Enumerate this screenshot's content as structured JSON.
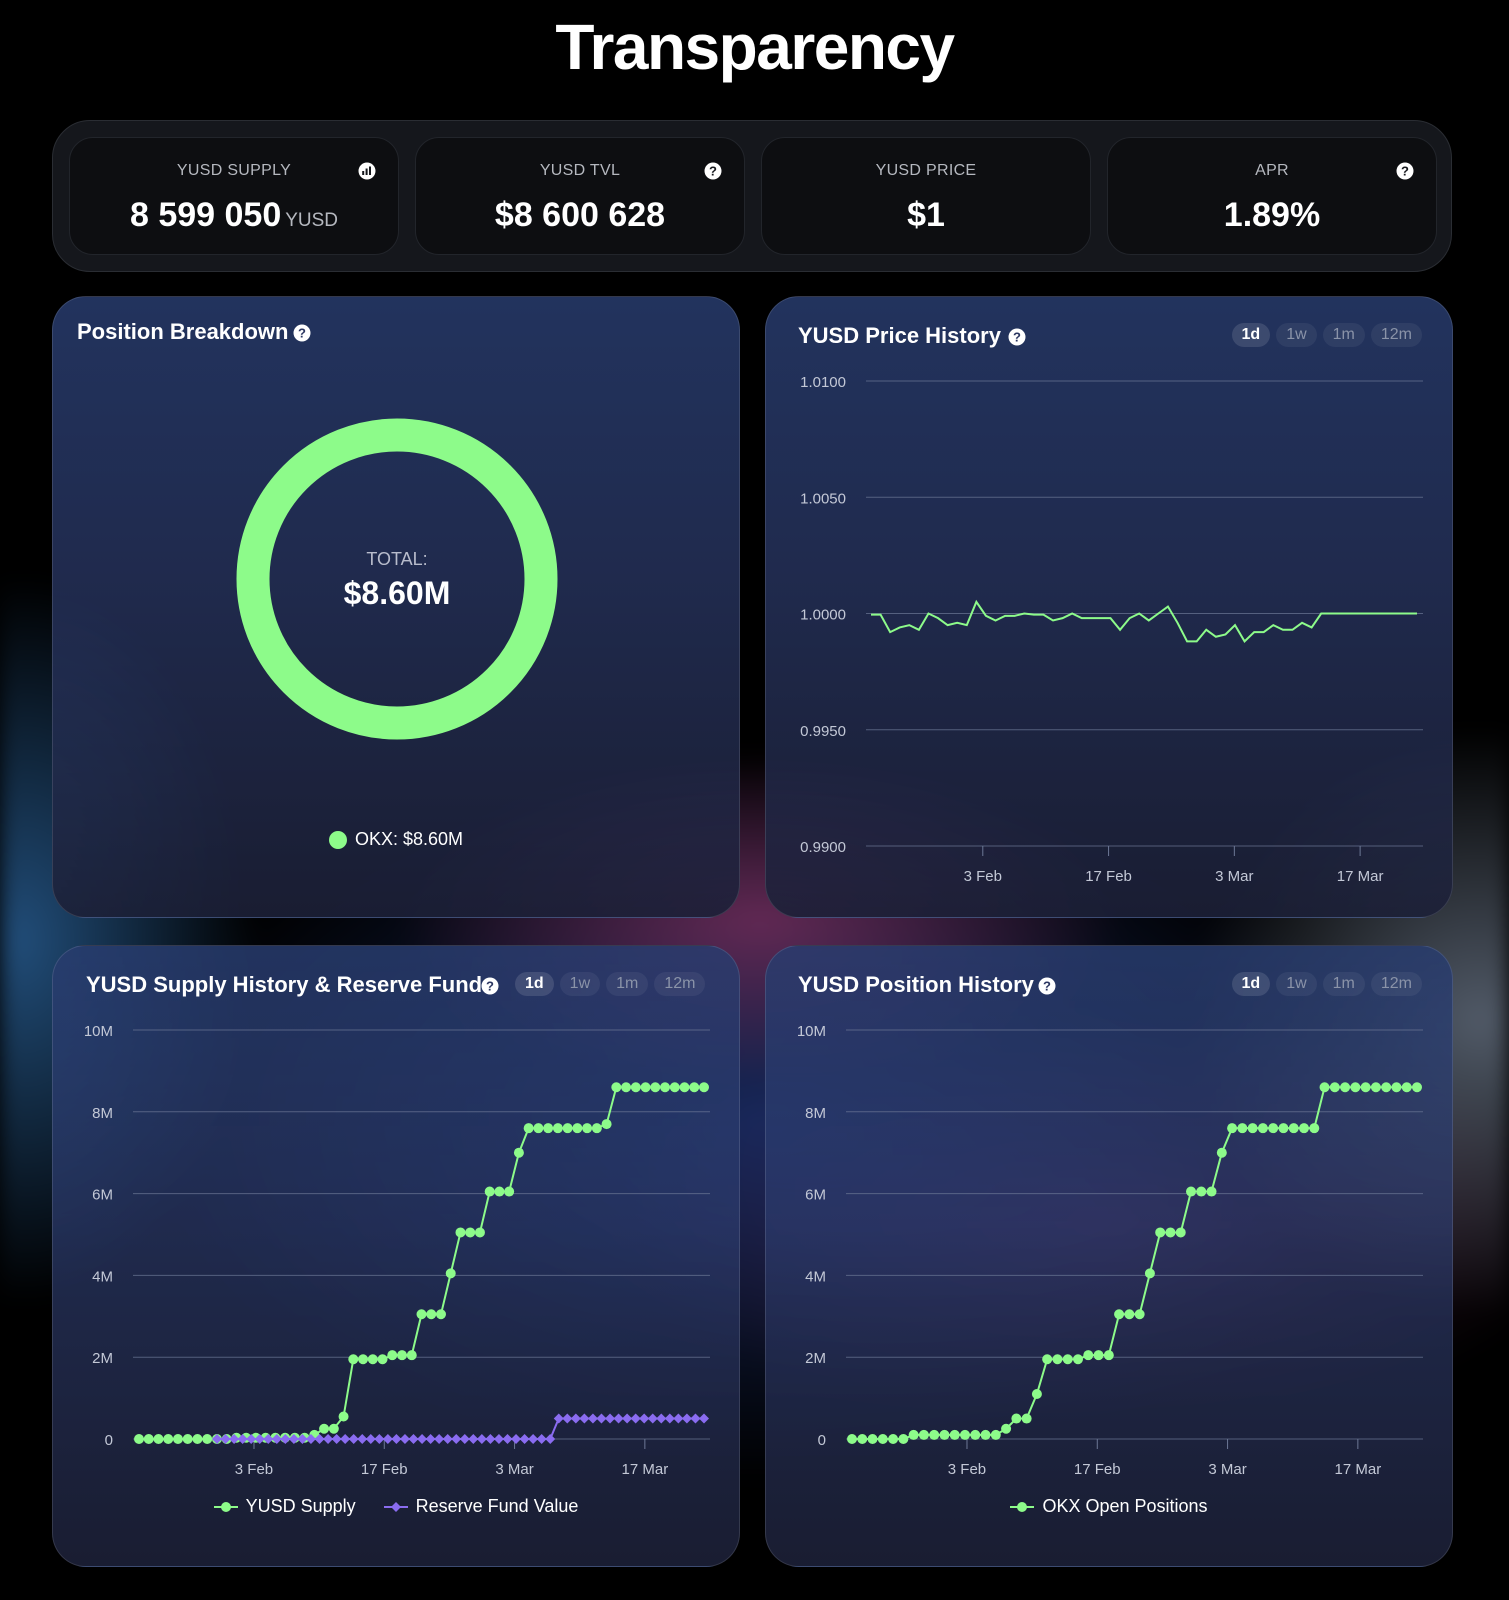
{
  "page": {
    "title": "Transparency"
  },
  "stats": [
    {
      "label": "YUSD SUPPLY",
      "value": "8 599 050",
      "unit": "YUSD",
      "icon": "chart-icon"
    },
    {
      "label": "YUSD TVL",
      "value": "$8 600 628",
      "unit": "",
      "icon": "help-icon"
    },
    {
      "label": "YUSD PRICE",
      "value": "$1",
      "unit": "",
      "icon": ""
    },
    {
      "label": "APR",
      "value": "1.89%",
      "unit": "",
      "icon": "help-icon"
    }
  ],
  "ranges": [
    "1d",
    "1w",
    "1m",
    "12m"
  ],
  "active_range": "1d",
  "colors": {
    "green": "#8dfb8a",
    "purple": "#8a6cf0",
    "grid": "#5a6480"
  },
  "position_breakdown": {
    "title": "Position Breakdown",
    "center_label": "TOTAL:",
    "center_value": "$8.60M",
    "legend": "OKX: $8.60M"
  },
  "price_history": {
    "title": "YUSD Price History"
  },
  "supply_history": {
    "title": "YUSD Supply History & Reserve Fund",
    "legend": [
      "YUSD Supply",
      "Reserve Fund Value"
    ]
  },
  "position_history": {
    "title": "YUSD Position History",
    "legend": [
      "OKX Open Positions"
    ]
  },
  "chart_data": [
    {
      "type": "pie",
      "title": "Position Breakdown",
      "categories": [
        "OKX"
      ],
      "values": [
        8.6
      ],
      "unit": "$M"
    },
    {
      "type": "line",
      "title": "YUSD Price History",
      "x_range": [
        "2025-01-21",
        "2025-03-24"
      ],
      "x_ticks": [
        "3 Feb",
        "17 Feb",
        "3 Mar",
        "17 Mar"
      ],
      "y_ticks": [
        "1.0100",
        "1.0050",
        "1.0000",
        "0.9950",
        "0.9900"
      ],
      "ylim": [
        0.99,
        1.01
      ],
      "series": [
        {
          "values": [
            0.99995,
            0.99995,
            0.9992,
            0.9994,
            0.9995,
            0.9993,
            1.0,
            0.9998,
            0.9995,
            0.9996,
            0.9995,
            1.0005,
            0.9999,
            0.9997,
            0.9999,
            0.9999,
            1.0,
            0.99995,
            0.99995,
            0.9997,
            0.9998,
            1.0,
            0.9998,
            0.9998,
            0.9998,
            0.9998,
            0.9993,
            0.9998,
            1.0,
            0.9997,
            1.0,
            1.0003,
            0.9996,
            0.9988,
            0.9988,
            0.9993,
            0.999,
            0.9991,
            0.9995,
            0.9988,
            0.9992,
            0.9992,
            0.9995,
            0.9993,
            0.9993,
            0.9996,
            0.9994,
            1.0,
            1.0,
            1.0,
            1.0,
            1.0,
            1.0,
            1.0,
            1.0,
            1.0,
            1.0,
            1.0
          ]
        }
      ]
    },
    {
      "type": "line",
      "title": "YUSD Supply History & Reserve Fund",
      "x_range": [
        "2025-01-21",
        "2025-03-24"
      ],
      "x_ticks": [
        "3 Feb",
        "17 Feb",
        "3 Mar",
        "17 Mar"
      ],
      "y_ticks": [
        "10M",
        "8M",
        "6M",
        "4M",
        "2M",
        "0"
      ],
      "ylim": [
        0,
        10000000
      ],
      "series": [
        {
          "name": "YUSD Supply",
          "values": [
            0,
            0,
            0,
            0,
            0,
            0,
            0,
            0,
            0,
            0,
            0.03,
            0.03,
            0.03,
            0.03,
            0.03,
            0.03,
            0.03,
            0.03,
            0.1,
            0.25,
            0.25,
            0.55,
            1.95,
            1.95,
            1.95,
            1.95,
            2.05,
            2.05,
            2.05,
            3.05,
            3.05,
            3.05,
            4.05,
            5.05,
            5.05,
            5.05,
            6.05,
            6.05,
            6.05,
            7.0,
            7.6,
            7.6,
            7.6,
            7.6,
            7.6,
            7.6,
            7.6,
            7.6,
            7.7,
            8.6,
            8.6,
            8.6,
            8.6,
            8.6,
            8.6,
            8.6,
            8.6,
            8.6,
            8.6
          ],
          "unit": "M"
        },
        {
          "name": "Reserve Fund Value",
          "values": [
            0,
            0,
            0,
            0,
            0,
            0,
            0,
            0,
            0,
            0,
            0,
            0,
            0,
            0,
            0,
            0,
            0,
            0,
            0,
            0,
            0,
            0,
            0,
            0,
            0,
            0,
            0,
            0,
            0,
            0,
            0,
            0,
            0,
            0,
            0,
            0,
            0,
            0,
            0,
            0,
            0.5,
            0.5,
            0.5,
            0.5,
            0.5,
            0.5,
            0.5,
            0.5,
            0.5,
            0.5,
            0.5,
            0.5,
            0.5,
            0.5,
            0.5,
            0.5,
            0.5,
            0.5
          ],
          "unit": "M"
        }
      ]
    },
    {
      "type": "line",
      "title": "YUSD Position History",
      "x_range": [
        "2025-01-21",
        "2025-03-24"
      ],
      "x_ticks": [
        "3 Feb",
        "17 Feb",
        "3 Mar",
        "17 Mar"
      ],
      "y_ticks": [
        "10M",
        "8M",
        "6M",
        "4M",
        "2M",
        "0"
      ],
      "ylim": [
        0,
        10000000
      ],
      "series": [
        {
          "name": "OKX Open Positions",
          "values": [
            0,
            0,
            0,
            0,
            0,
            0,
            0.1,
            0.1,
            0.1,
            0.1,
            0.1,
            0.1,
            0.1,
            0.1,
            0.1,
            0.25,
            0.5,
            0.5,
            1.1,
            1.95,
            1.95,
            1.95,
            1.95,
            2.05,
            2.05,
            2.05,
            3.05,
            3.05,
            3.05,
            4.05,
            5.05,
            5.05,
            5.05,
            6.05,
            6.05,
            6.05,
            7.0,
            7.6,
            7.6,
            7.6,
            7.6,
            7.6,
            7.6,
            7.6,
            7.6,
            7.6,
            8.6,
            8.6,
            8.6,
            8.6,
            8.6,
            8.6,
            8.6,
            8.6,
            8.6,
            8.6
          ],
          "unit": "M"
        }
      ]
    }
  ]
}
